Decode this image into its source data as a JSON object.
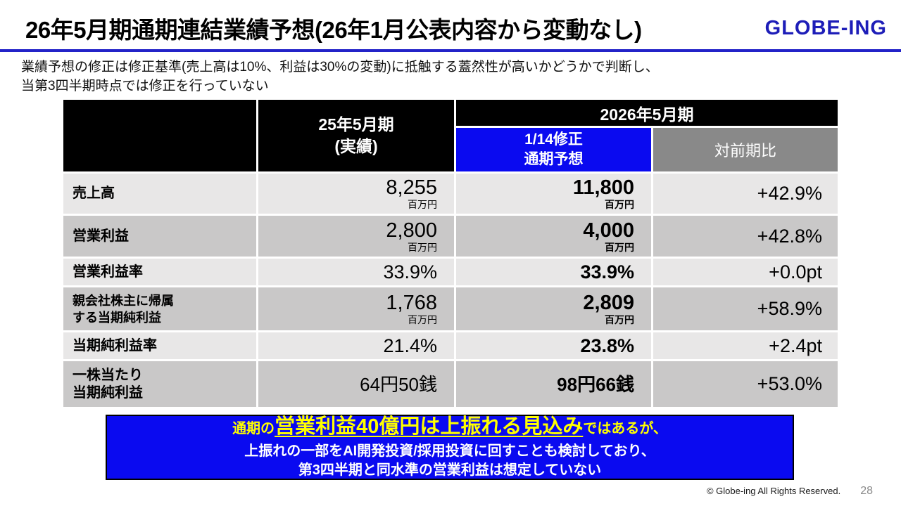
{
  "title": "26年5月期通期連結業績予想(26年1月公表内容から変動なし)",
  "logo": "GLOBE-ING",
  "subtitle": {
    "line1": "業績予想の修正は修正基準(売上高は10%、利益は30%の変動)に抵触する蓋然性が高いかどうかで判断し、",
    "line2": "当第3四半期時点では修正を行っていない"
  },
  "table": {
    "header": {
      "actual_period_line1": "25年5月期",
      "actual_period_line2": "(実績)",
      "group_2026": "2026年5月期",
      "forecast_line1": "1/14修正",
      "forecast_line2": "通期予想",
      "yoy": "対前期比"
    },
    "rows": [
      {
        "label": "売上高",
        "actual": "8,255",
        "actual_unit": "百万円",
        "forecast": "11,800",
        "forecast_unit": "百万円",
        "yoy": "+42.9%"
      },
      {
        "label": "営業利益",
        "actual": "2,800",
        "actual_unit": "百万円",
        "forecast": "4,000",
        "forecast_unit": "百万円",
        "yoy": "+42.8%"
      },
      {
        "label": "営業利益率",
        "actual": "33.9%",
        "forecast": "33.9%",
        "yoy": "+0.0pt"
      },
      {
        "label_line1": "親会社株主に帰属",
        "label_line2": "する当期純利益",
        "actual": "1,768",
        "actual_unit": "百万円",
        "forecast": "2,809",
        "forecast_unit": "百万円",
        "yoy": "+58.9%"
      },
      {
        "label": "当期純利益率",
        "actual": "21.4%",
        "forecast": "23.8%",
        "yoy": "+2.4pt"
      },
      {
        "label_line1": "一株当たり",
        "label_line2": "当期純利益",
        "actual": "64円50銭",
        "forecast": "98円66銭",
        "yoy": "+53.0%"
      }
    ]
  },
  "banner": {
    "line1_prefix": "通期の",
    "line1_highlight": "営業利益40億円は上振れる見込み",
    "line1_suffix": "ではあるが、",
    "line2": "上振れの一部をAI開発投資/採用投資に回すことも検討しており、",
    "line3": "第3四半期と同水準の営業利益は想定していない"
  },
  "footer": {
    "copyright": "© Globe-ing All Rights Reserved.",
    "page_number": "28"
  },
  "colors": {
    "accent_blue": "#0a0af0",
    "logo_blue": "#1d1db8",
    "rule_blue": "#2323c8",
    "header_black": "#000000",
    "header_gray": "#898989",
    "row_light": "#e8e7e7",
    "row_dark": "#c9c8c8",
    "highlight_yellow": "#ffff00"
  }
}
